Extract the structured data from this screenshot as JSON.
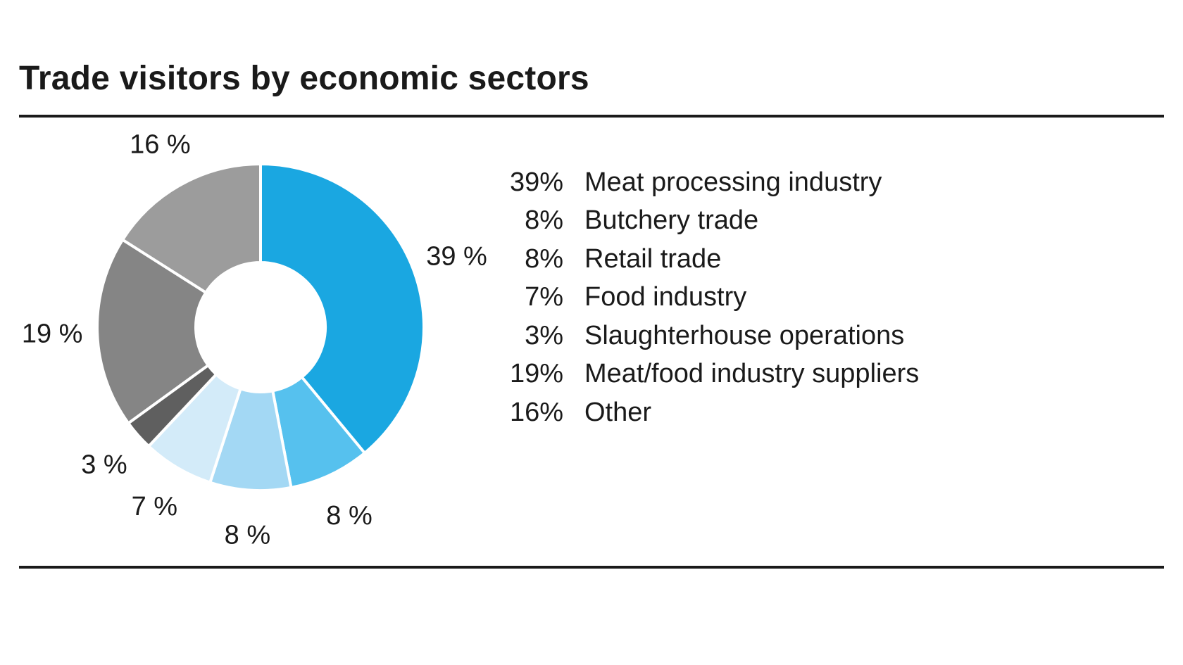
{
  "title": "Trade visitors by economic sectors",
  "legend": [
    {
      "value": "39%",
      "label": "Meat processing industry"
    },
    {
      "value": "8%",
      "label": "Butchery trade"
    },
    {
      "value": "8%",
      "label": "Retail trade"
    },
    {
      "value": "7%",
      "label": "Food industry"
    },
    {
      "value": "3%",
      "label": "Slaughterhouse operations"
    },
    {
      "value": "19%",
      "label": "Meat/food industry suppliers"
    },
    {
      "value": "16%",
      "label": "Other"
    }
  ],
  "chart_data": {
    "type": "pie",
    "variant": "donut",
    "title": "Trade visitors by economic sectors",
    "unit": "%",
    "slices": [
      {
        "name": "Meat processing industry",
        "value": 39,
        "label": "39 %",
        "color": "#1aa7e1"
      },
      {
        "name": "Butchery trade",
        "value": 8,
        "label": "8 %",
        "color": "#56c1ee"
      },
      {
        "name": "Retail trade",
        "value": 8,
        "label": "8 %",
        "color": "#a3d8f4"
      },
      {
        "name": "Food industry",
        "value": 7,
        "label": "7 %",
        "color": "#d3ebf9"
      },
      {
        "name": "Slaughterhouse operations",
        "value": 3,
        "label": "3 %",
        "color": "#5f5f5f"
      },
      {
        "name": "Meat/food industry suppliers",
        "value": 19,
        "label": "19 %",
        "color": "#858585"
      },
      {
        "name": "Other",
        "value": 16,
        "label": "16 %",
        "color": "#9c9c9c"
      }
    ],
    "legend_position": "right"
  }
}
